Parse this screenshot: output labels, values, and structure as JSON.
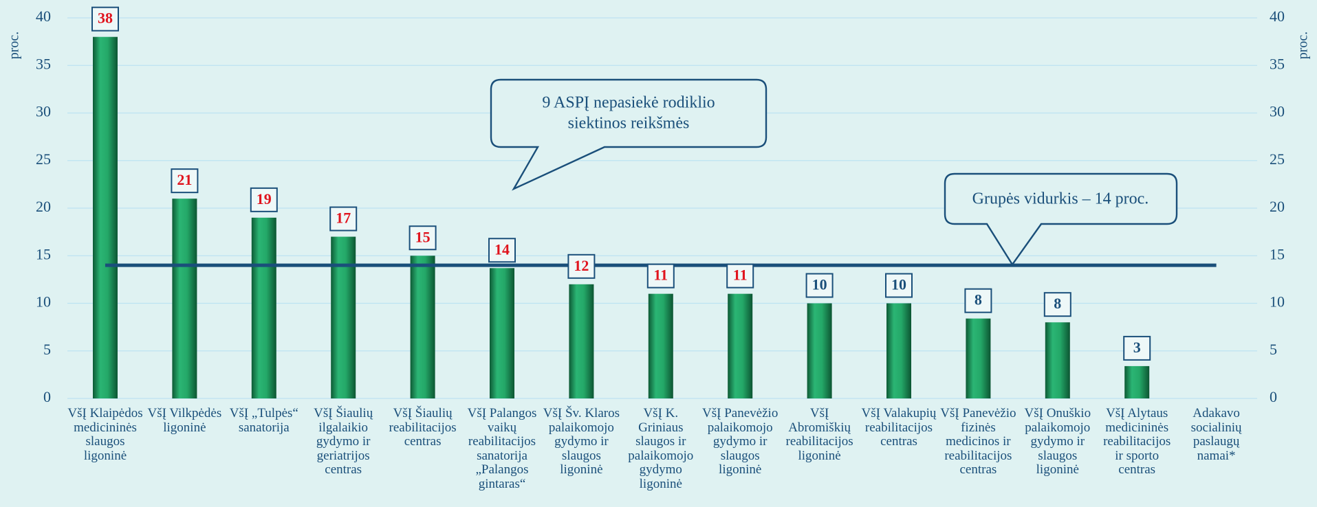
{
  "chart_data": {
    "type": "bar",
    "y_label": "proc.",
    "y2_label": "proc.",
    "categories": [
      "VšĮ Klaipėdos medicininės slaugos ligoninė",
      "VšĮ Vilkpėdės ligoninė",
      "VšĮ „Tulpės“ sanatorija",
      "VšĮ Šiaulių ilgalaikio gydymo ir geriatrijos centras",
      "VšĮ Šiaulių reabilitacijos centras",
      "VšĮ Palangos vaikų reabilitacijos sanatorija „Palangos gintaras“",
      "VšĮ Šv. Klaros palaikomojo gydymo ir slaugos ligoninė",
      "VšĮ K. Griniaus slaugos ir palaikomojo gydymo ligoninė",
      "VšĮ Panevėžio palaikomojo gydymo ir slaugos ligoninė",
      "VšĮ Abromiškių reabilitacijos ligoninė",
      "VšĮ Valakupių reabilitacijos centras",
      "VšĮ Panevėžio fizinės medicinos ir reabilitacijos centras",
      "VšĮ Onuškio palaikomojo gydymo ir slaugos ligoninė",
      "VšĮ Alytaus medicininės reabilitacijos ir sporto centras",
      "Adakavo socialinių paslaugų namai*"
    ],
    "values": [
      38,
      21,
      19,
      17,
      15,
      13.7,
      12,
      11,
      11,
      10,
      10,
      8.4,
      8,
      3.4,
      null
    ],
    "value_labels": [
      "38",
      "21",
      "19",
      "17",
      "15",
      "14",
      "12",
      "11",
      "11",
      "10",
      "10",
      "8",
      "8",
      "3",
      null
    ],
    "value_label_colors": [
      "#e0141e",
      "#e0141e",
      "#e0141e",
      "#e0141e",
      "#e0141e",
      "#e0141e",
      "#e0141e",
      "#e0141e",
      "#e0141e",
      "#1a4f7a",
      "#1a4f7a",
      "#1a4f7a",
      "#1a4f7a",
      "#1a4f7a",
      null
    ],
    "color": "#1f9d5f",
    "reference_line": {
      "value": 14,
      "color": "#1a4f7a"
    },
    "annotations": [
      {
        "lines": [
          "9 ASPĮ nepasiekė rodiklio",
          "siektinos reikšmės"
        ]
      },
      {
        "lines": [
          "Grupės vidurkis – 14 proc."
        ]
      }
    ],
    "ylim": [
      0,
      40
    ],
    "yticks": [
      0,
      5,
      10,
      15,
      20,
      25,
      30,
      35,
      40
    ],
    "y2lim": [
      0,
      40
    ],
    "y2ticks": [
      0,
      5,
      10,
      15,
      20,
      25,
      30,
      35,
      40
    ],
    "grid": true
  }
}
